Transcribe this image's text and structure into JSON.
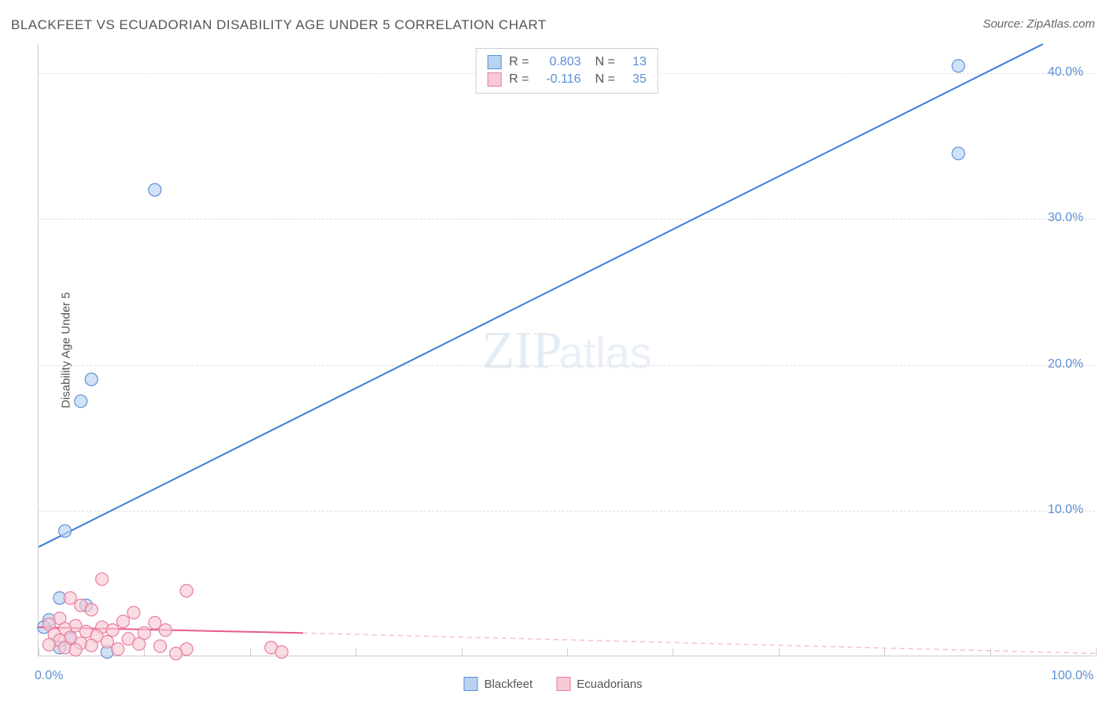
{
  "title": "BLACKFEET VS ECUADORIAN DISABILITY AGE UNDER 5 CORRELATION CHART",
  "source": "Source: ZipAtlas.com",
  "ylabel": "Disability Age Under 5",
  "watermark_zip": "ZIP",
  "watermark_atlas": "atlas",
  "chart": {
    "type": "scatter",
    "background_color": "#ffffff",
    "grid_color": "#dddddd",
    "axis_color": "#cccccc",
    "tick_label_color": "#5c8fd6",
    "xlim": [
      0,
      100
    ],
    "ylim": [
      0,
      42
    ],
    "xticks": [
      0,
      10,
      20,
      30,
      40,
      50,
      60,
      70,
      80,
      90,
      100
    ],
    "xtick_labels": {
      "0": "0.0%",
      "100": "100.0%"
    },
    "yticks": [
      10,
      20,
      30,
      40
    ],
    "ytick_labels": {
      "10": "10.0%",
      "20": "20.0%",
      "30": "30.0%",
      "40": "40.0%"
    },
    "series": [
      {
        "name": "Blackfeet",
        "color_fill": "#b9d2ef",
        "color_stroke": "#5c8fd6",
        "marker_radius": 8,
        "points": [
          [
            87,
            40.5
          ],
          [
            87,
            34.5
          ],
          [
            11,
            32
          ],
          [
            5,
            19
          ],
          [
            4,
            17.5
          ],
          [
            2.5,
            8.6
          ],
          [
            2,
            4
          ],
          [
            4.5,
            3.5
          ],
          [
            1,
            2.5
          ],
          [
            0.5,
            2
          ],
          [
            3,
            1.2
          ],
          [
            6.5,
            0.3
          ],
          [
            2,
            0.6
          ]
        ],
        "trend": {
          "x1": 0,
          "y1": 7.5,
          "x2": 95,
          "y2": 42,
          "color": "#3b7dd8",
          "width": 2,
          "dash": null,
          "extend_dash": null
        }
      },
      {
        "name": "Ecuadorians",
        "color_fill": "#f7c9d4",
        "color_stroke": "#e87ea0",
        "marker_radius": 8,
        "points": [
          [
            6,
            5.3
          ],
          [
            14,
            4.5
          ],
          [
            3,
            4.0
          ],
          [
            4,
            3.5
          ],
          [
            5,
            3.2
          ],
          [
            9,
            3.0
          ],
          [
            2,
            2.6
          ],
          [
            8,
            2.4
          ],
          [
            11,
            2.3
          ],
          [
            1,
            2.2
          ],
          [
            3.5,
            2.1
          ],
          [
            6,
            2.0
          ],
          [
            2.5,
            1.9
          ],
          [
            7,
            1.8
          ],
          [
            4.5,
            1.7
          ],
          [
            10,
            1.6
          ],
          [
            1.5,
            1.5
          ],
          [
            5.5,
            1.4
          ],
          [
            3,
            1.3
          ],
          [
            8.5,
            1.2
          ],
          [
            2,
            1.1
          ],
          [
            6.5,
            1.0
          ],
          [
            4,
            0.9
          ],
          [
            9.5,
            0.85
          ],
          [
            1,
            0.8
          ],
          [
            5,
            0.75
          ],
          [
            11.5,
            0.7
          ],
          [
            2.5,
            0.6
          ],
          [
            7.5,
            0.5
          ],
          [
            3.5,
            0.45
          ],
          [
            22,
            0.6
          ],
          [
            23,
            0.3
          ],
          [
            14,
            0.5
          ],
          [
            12,
            1.8
          ],
          [
            13,
            0.2
          ]
        ],
        "trend": {
          "x1": 0,
          "y1": 2.0,
          "x2": 25,
          "y2": 1.6,
          "color": "#e85b8a",
          "width": 2,
          "dash": null,
          "extend_to_x": 100,
          "extend_to_y": 0.2,
          "extend_dash": "6,5",
          "extend_color": "#f4c0cf"
        }
      }
    ]
  },
  "stats": [
    {
      "swatch_fill": "#b9d2ef",
      "swatch_stroke": "#5c8fd6",
      "r_label": "R =",
      "r_val": "0.803",
      "n_label": "N =",
      "n_val": "13"
    },
    {
      "swatch_fill": "#f7c9d4",
      "swatch_stroke": "#e87ea0",
      "r_label": "R =",
      "r_val": "-0.116",
      "n_label": "N =",
      "n_val": "35"
    }
  ],
  "legend": [
    {
      "swatch_fill": "#b9d2ef",
      "swatch_stroke": "#5c8fd6",
      "label": "Blackfeet"
    },
    {
      "swatch_fill": "#f7c9d4",
      "swatch_stroke": "#e87ea0",
      "label": "Ecuadorians"
    }
  ]
}
